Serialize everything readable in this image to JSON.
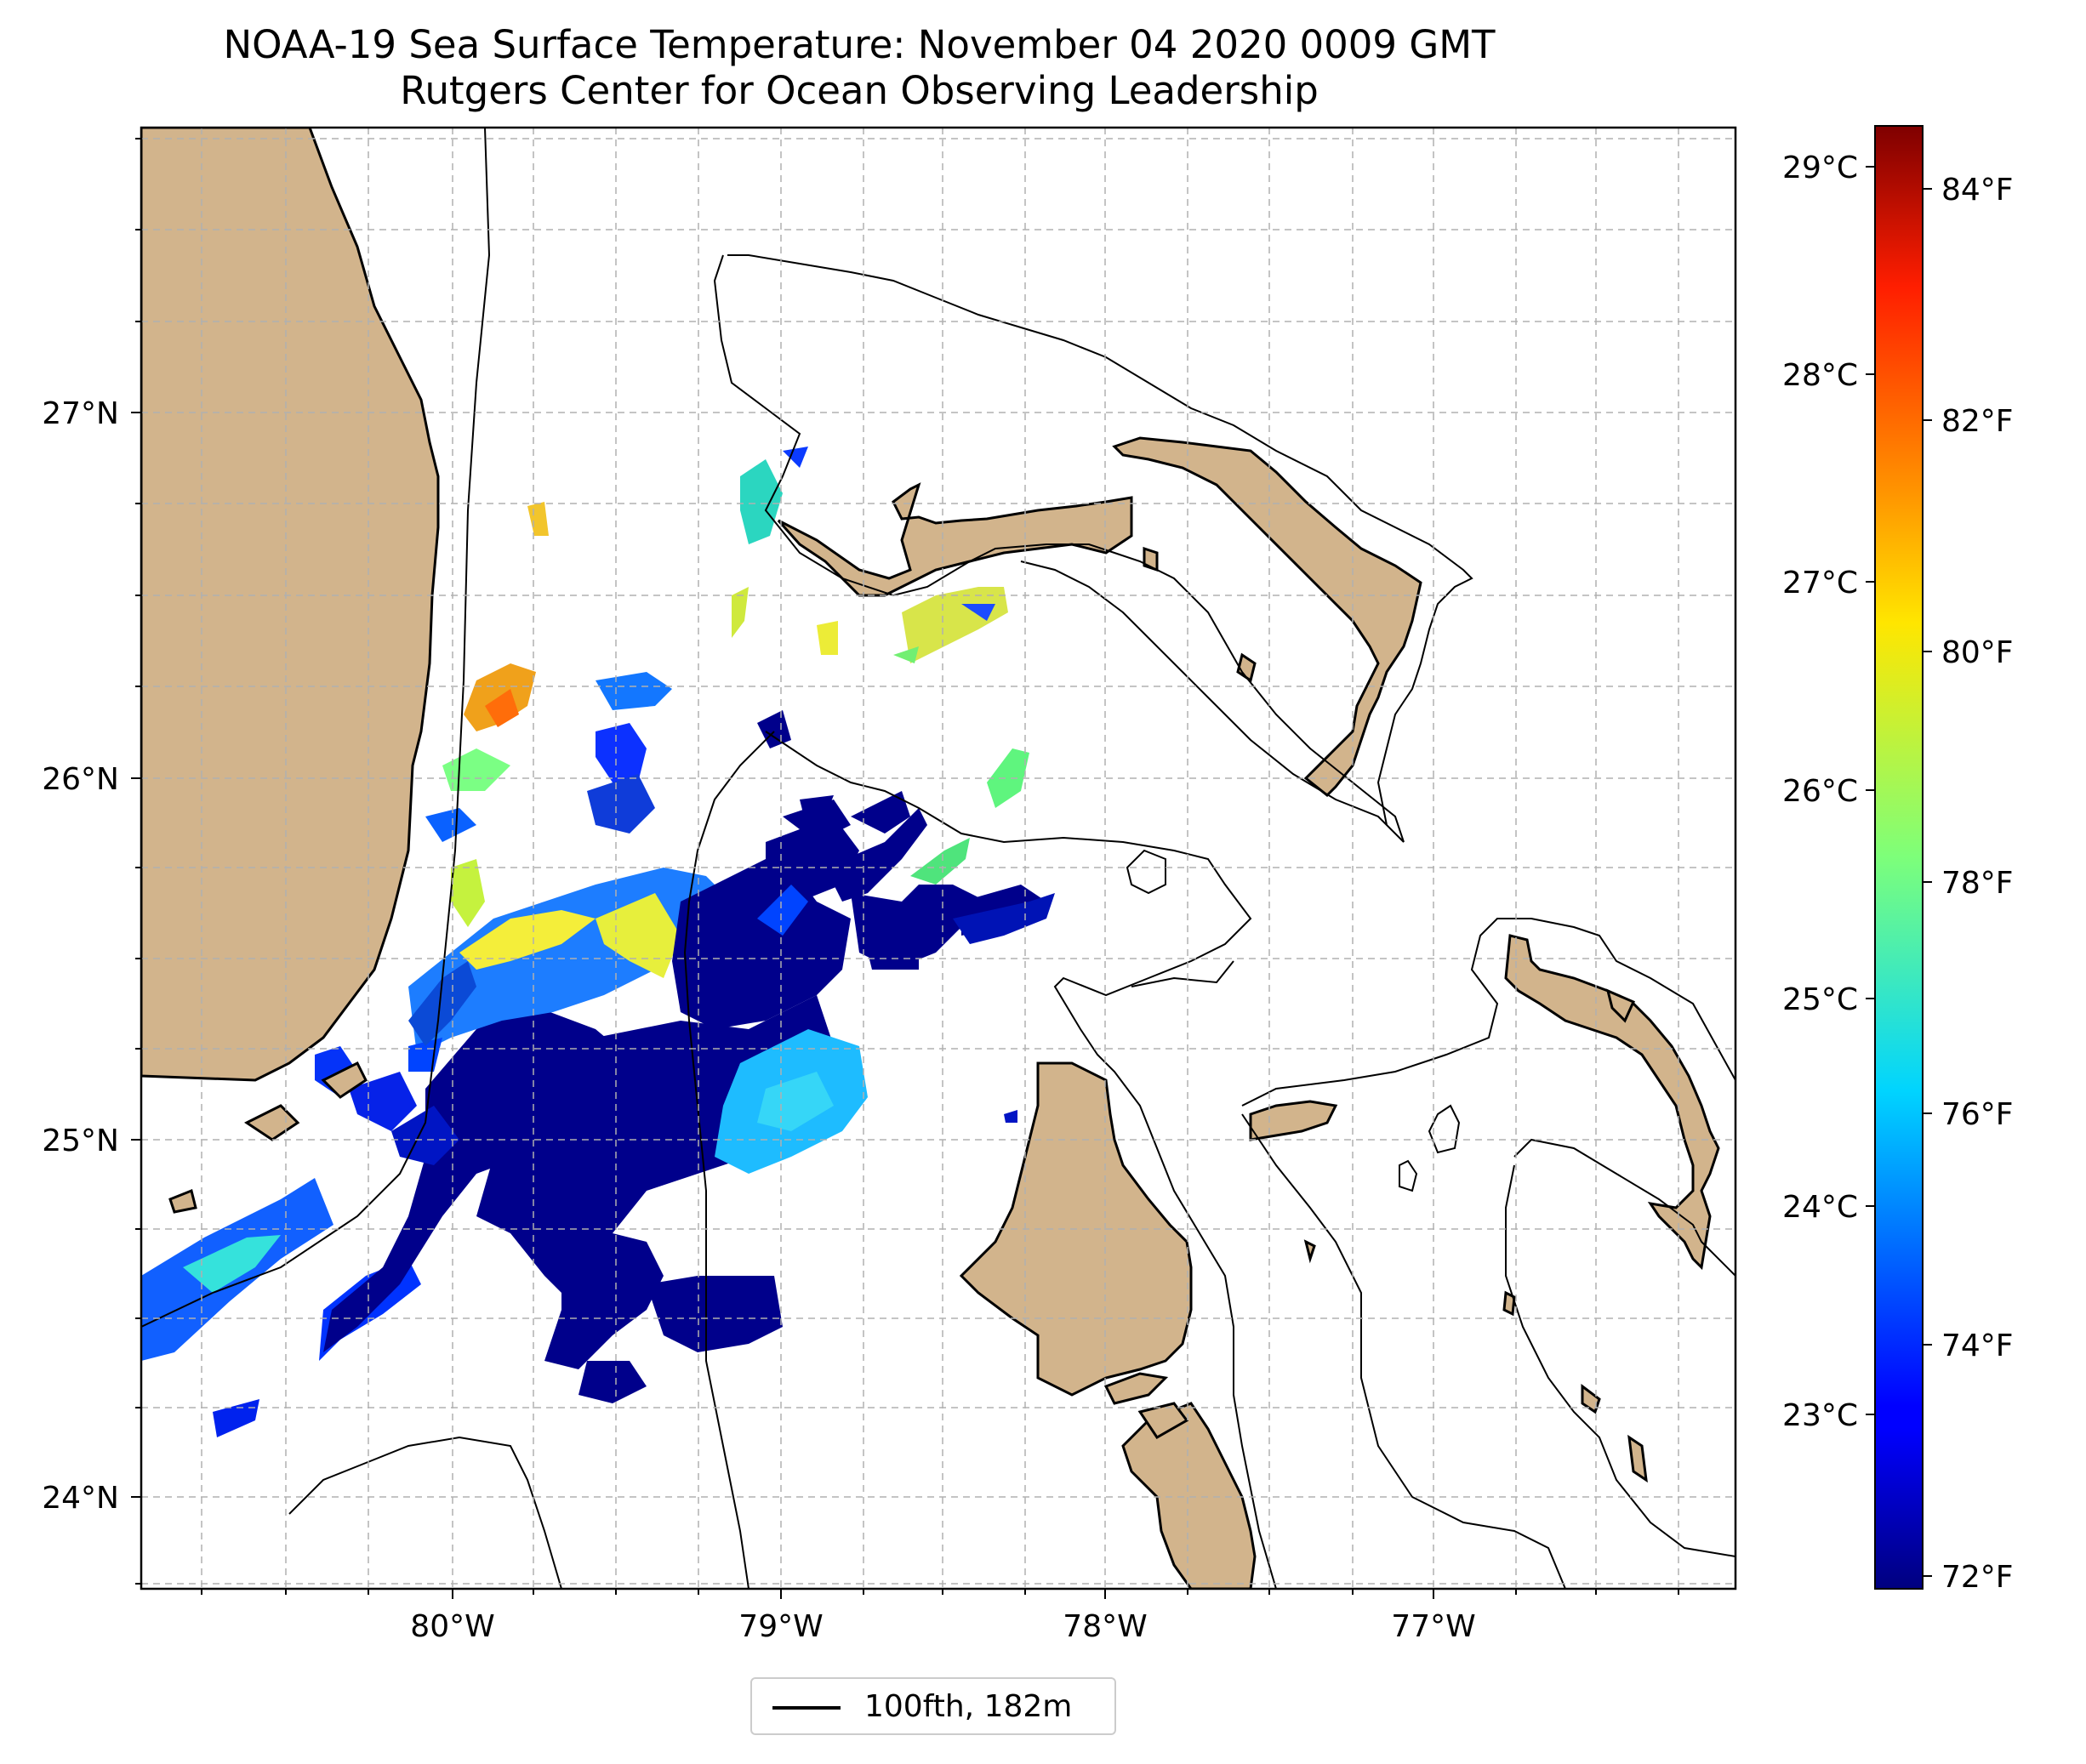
{
  "title": {
    "line1": "NOAA-19 Sea Surface Temperature: November 04 2020 0009 GMT",
    "line2": "Rutgers Center for Ocean Observing Leadership"
  },
  "map": {
    "lat_range": [
      23.75,
      27.8
    ],
    "lon_range": [
      -80.95,
      -76.05
    ],
    "lat_ticks": [
      "27°N",
      "26°N",
      "25°N",
      "24°N"
    ],
    "lon_ticks": [
      "80°W",
      "79°W",
      "78°W",
      "77°W"
    ],
    "gridlines": true,
    "land_color": "#d2b48c",
    "coastline_color": "#000000",
    "isobath_color": "#000000",
    "colormap": "jet"
  },
  "legend": {
    "label": "100fth, 182m",
    "placement": "bottom-center"
  },
  "colorbar": {
    "celsius_ticks": [
      "29°C",
      "28°C",
      "27°C",
      "26°C",
      "25°C",
      "24°C",
      "23°C"
    ],
    "fahrenheit_ticks": [
      "84°F",
      "82°F",
      "80°F",
      "78°F",
      "76°F",
      "74°F",
      "72°F"
    ],
    "fahrenheit_range": [
      71.9,
      84.6
    ]
  }
}
